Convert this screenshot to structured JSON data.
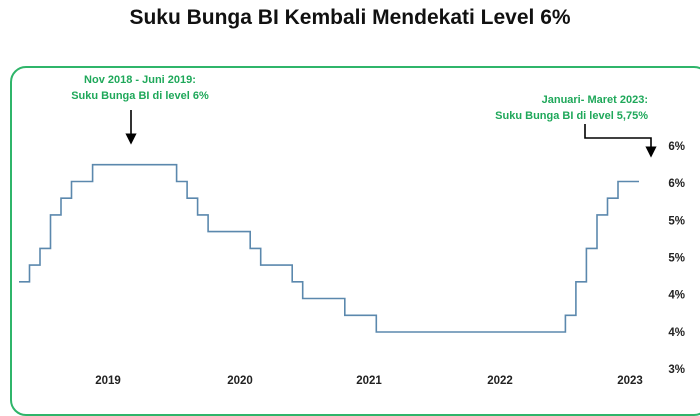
{
  "title": "Suku Bunga BI Kembali Mendekati Level 6%",
  "colors": {
    "line": "#5b88ad",
    "accent": "#2fb56a",
    "annotation_text": "#1fa85a",
    "text": "#111111"
  },
  "chart_data": {
    "type": "line",
    "step": true,
    "title": "Suku Bunga BI Kembali Mendekati Level 6%",
    "xlabel": "",
    "ylabel": "",
    "x_ticks": [
      "2019",
      "2020",
      "2021",
      "2022",
      "2023"
    ],
    "y_ticks": [
      "3%",
      "4%",
      "4%",
      "5%",
      "5%",
      "6%",
      "6%"
    ],
    "ylim": [
      3.5,
      6.25
    ],
    "xlim": [
      "2018-04",
      "2023-05"
    ],
    "grid": false,
    "legend": "none",
    "series": [
      {
        "x": [
          "2018-04",
          "2018-05",
          "2018-06",
          "2018-07",
          "2018-08",
          "2018-09",
          "2018-11",
          "2019-07",
          "2019-08",
          "2019-09",
          "2019-10",
          "2020-02",
          "2020-03",
          "2020-04",
          "2020-06",
          "2020-07",
          "2020-11",
          "2021-02",
          "2022-08",
          "2022-09",
          "2022-10",
          "2022-11",
          "2022-12",
          "2023-01",
          "2023-03"
        ],
        "y": [
          4.25,
          4.5,
          4.75,
          5.25,
          5.5,
          5.75,
          6.0,
          5.75,
          5.5,
          5.25,
          5.0,
          4.75,
          4.5,
          4.5,
          4.25,
          4.0,
          3.75,
          3.5,
          3.75,
          4.25,
          4.75,
          5.25,
          5.5,
          5.75,
          5.75
        ]
      }
    ],
    "annotations": [
      {
        "lines": [
          "Nov 2018 - Juni 2019:",
          "Suku Bunga BI di level 6%"
        ]
      },
      {
        "lines": [
          "Januari- Maret 2023:",
          "Suku Bunga BI di level 5,75%"
        ]
      }
    ]
  }
}
